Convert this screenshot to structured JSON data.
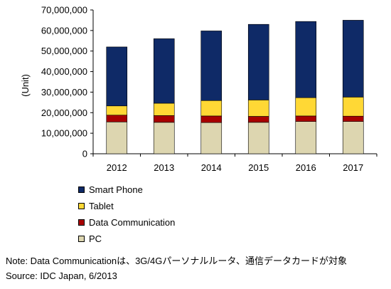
{
  "chart_data": {
    "type": "bar",
    "stacked": true,
    "categories": [
      "2012",
      "2013",
      "2014",
      "2015",
      "2016",
      "2017"
    ],
    "ylabel": "(Unit)",
    "ylim": [
      0,
      70000000
    ],
    "yticks": [
      0,
      10000000,
      20000000,
      30000000,
      40000000,
      50000000,
      60000000,
      70000000
    ],
    "ytick_labels": [
      "0",
      "10,000,000",
      "20,000,000",
      "30,000,000",
      "40,000,000",
      "50,000,000",
      "60,000,000",
      "70,000,000"
    ],
    "series": [
      {
        "name": "PC",
        "color": "#ddd6b0",
        "values": [
          15500000,
          15300000,
          15200000,
          15300000,
          15700000,
          15700000
        ]
      },
      {
        "name": "Data Communication",
        "color": "#a80000",
        "values": [
          3300000,
          3300000,
          3200000,
          2900000,
          2700000,
          2600000
        ]
      },
      {
        "name": "Tablet",
        "color": "#ffd835",
        "values": [
          4500000,
          6000000,
          7500000,
          8000000,
          8900000,
          9300000
        ]
      },
      {
        "name": "Smart Phone",
        "color": "#0f2a67",
        "values": [
          28700000,
          31400000,
          33900000,
          36800000,
          37100000,
          37400000
        ]
      }
    ],
    "legend": {
      "position": "bottom-left",
      "items": [
        "Smart Phone",
        "Tablet",
        "Data Communication",
        "PC"
      ]
    },
    "grid": false
  },
  "note": {
    "line1": "Note: Data Communicationは、3G/4Gパーソナルルータ、通信データカードが対象",
    "line2": "Source: IDC Japan, 6/2013"
  }
}
